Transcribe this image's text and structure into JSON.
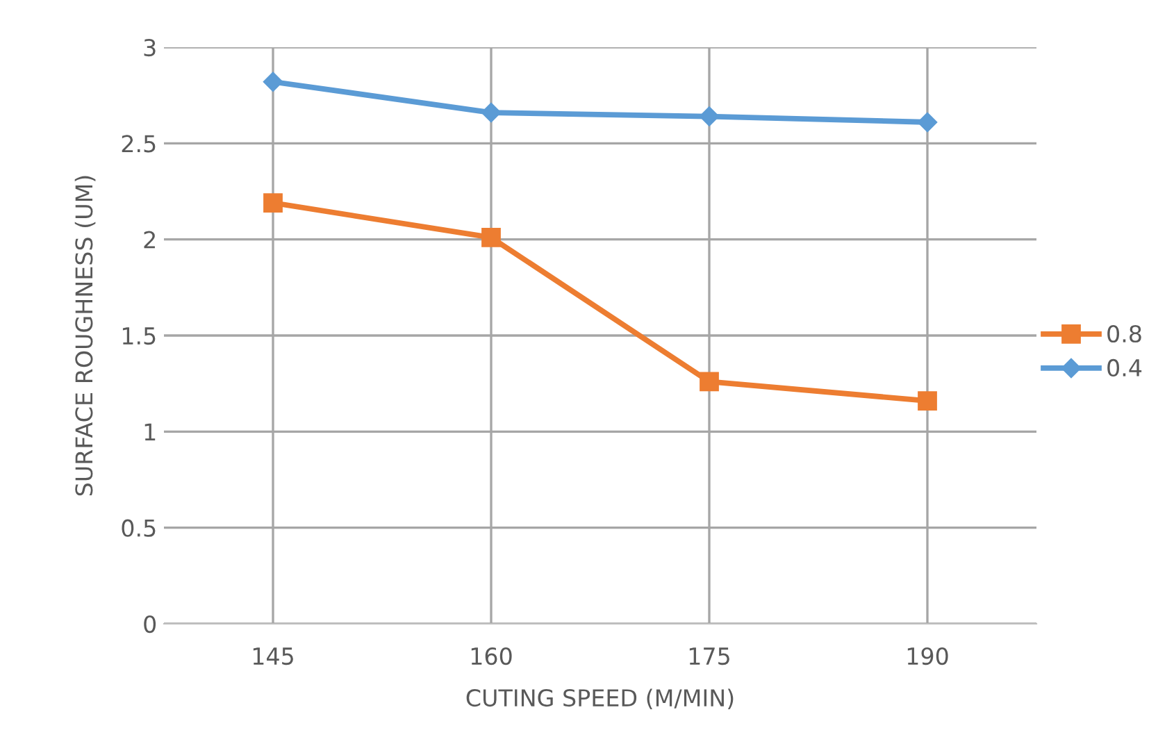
{
  "chart_data": {
    "type": "line",
    "xlabel": "CUTING SPEED (M/MIN)",
    "ylabel": "SURFACE ROUGHNESS (UM)",
    "categories": [
      "145",
      "160",
      "175",
      "190"
    ],
    "series": [
      {
        "name": "0.8",
        "color": "#ed7d31",
        "marker": "square",
        "values": [
          2.19,
          2.01,
          1.26,
          1.16
        ]
      },
      {
        "name": "0.4",
        "color": "#5b9bd5",
        "marker": "diamond",
        "values": [
          2.82,
          2.66,
          2.64,
          2.61
        ]
      }
    ],
    "ylim": [
      0,
      3
    ],
    "yticks": [
      0,
      0.5,
      1,
      1.5,
      2,
      2.5,
      3
    ],
    "grid": true,
    "legend": "right",
    "line_style": "solid"
  }
}
